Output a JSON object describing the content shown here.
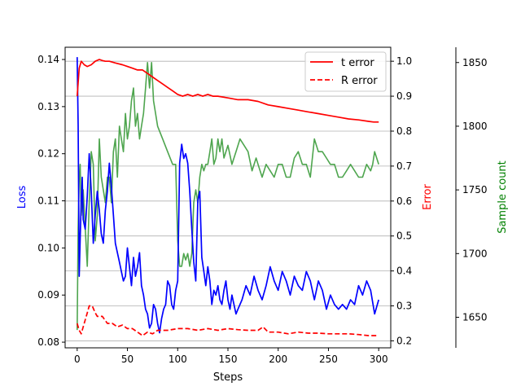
{
  "chart_data": {
    "type": "line",
    "xlabel": "Steps",
    "xlim": [
      -12,
      312
    ],
    "xticks": [
      0,
      50,
      100,
      150,
      200,
      250,
      300
    ],
    "grid": "horizontal on right (Error) axis",
    "legend_placement": "top-right",
    "axes": {
      "left": {
        "label": "Loss",
        "color": "#0000ff",
        "ylim": [
          0.0788,
          0.1426
        ],
        "ticks": [
          "0.08",
          "0.09",
          "0.10",
          "0.11",
          "0.12",
          "0.13",
          "0.14"
        ]
      },
      "right": {
        "label": "Error",
        "color": "#ff0000",
        "ylim": [
          0.18,
          1.04
        ],
        "ticks": [
          "0.2",
          "0.3",
          "0.4",
          "0.5",
          "0.6",
          "0.7",
          "0.8",
          "0.9",
          "1.0"
        ]
      },
      "far_right": {
        "label": "Sample count",
        "color": "#008000",
        "ylim": [
          1626,
          1862
        ],
        "ticks": [
          "1650",
          "1700",
          "1750",
          "1800",
          "1850"
        ]
      }
    },
    "series": [
      {
        "name": "t error",
        "axis": "right",
        "color": "#ff0000",
        "style": "solid",
        "x": [
          0,
          2,
          4,
          7,
          10,
          14,
          18,
          22,
          25,
          28,
          32,
          38,
          45,
          50,
          55,
          60,
          65,
          70,
          75,
          80,
          85,
          90,
          95,
          100,
          105,
          110,
          115,
          120,
          125,
          130,
          135,
          140,
          150,
          160,
          170,
          180,
          190,
          200,
          210,
          220,
          230,
          240,
          250,
          260,
          270,
          280,
          290,
          295,
          300
        ],
        "y": [
          0.9,
          0.98,
          1.0,
          0.99,
          0.985,
          0.99,
          1.0,
          1.005,
          1.002,
          1.0,
          1.0,
          0.995,
          0.99,
          0.985,
          0.98,
          0.975,
          0.975,
          0.965,
          0.955,
          0.945,
          0.935,
          0.925,
          0.915,
          0.905,
          0.9,
          0.905,
          0.9,
          0.905,
          0.9,
          0.905,
          0.9,
          0.9,
          0.895,
          0.89,
          0.89,
          0.885,
          0.875,
          0.87,
          0.865,
          0.86,
          0.855,
          0.85,
          0.845,
          0.84,
          0.835,
          0.832,
          0.828,
          0.826,
          0.826
        ]
      },
      {
        "name": "R error",
        "axis": "right",
        "color": "#ff0000",
        "style": "dashed",
        "x": [
          0,
          2,
          4,
          6,
          8,
          10,
          12,
          15,
          18,
          20,
          25,
          30,
          35,
          40,
          45,
          50,
          55,
          60,
          65,
          70,
          75,
          80,
          90,
          100,
          110,
          120,
          130,
          140,
          150,
          160,
          170,
          180,
          185,
          190,
          200,
          210,
          220,
          230,
          240,
          250,
          260,
          270,
          280,
          290,
          300
        ],
        "y": [
          0.25,
          0.23,
          0.22,
          0.24,
          0.26,
          0.28,
          0.3,
          0.3,
          0.28,
          0.27,
          0.27,
          0.25,
          0.25,
          0.24,
          0.245,
          0.235,
          0.235,
          0.225,
          0.215,
          0.225,
          0.22,
          0.23,
          0.23,
          0.235,
          0.235,
          0.23,
          0.235,
          0.23,
          0.235,
          0.232,
          0.23,
          0.23,
          0.24,
          0.225,
          0.225,
          0.22,
          0.225,
          0.222,
          0.222,
          0.22,
          0.22,
          0.22,
          0.218,
          0.215,
          0.215
        ]
      },
      {
        "name": "",
        "axis": "far_right",
        "color": "#4ea54e",
        "style": "solid",
        "x": [
          0,
          1,
          2,
          3,
          4,
          6,
          8,
          10,
          12,
          14,
          16,
          18,
          20,
          22,
          24,
          26,
          28,
          30,
          32,
          34,
          36,
          38,
          40,
          42,
          44,
          46,
          48,
          50,
          52,
          54,
          56,
          58,
          60,
          62,
          64,
          66,
          68,
          70,
          72,
          74,
          76,
          78,
          80,
          85,
          90,
          95,
          98,
          100,
          102,
          104,
          106,
          108,
          110,
          112,
          114,
          116,
          118,
          120,
          122,
          124,
          126,
          128,
          130,
          132,
          134,
          136,
          138,
          140,
          142,
          144,
          146,
          150,
          154,
          158,
          162,
          166,
          170,
          174,
          178,
          180,
          184,
          188,
          192,
          196,
          200,
          204,
          208,
          212,
          216,
          220,
          224,
          228,
          232,
          236,
          240,
          244,
          248,
          252,
          256,
          260,
          264,
          268,
          272,
          276,
          280,
          284,
          288,
          292,
          294,
          296,
          300
        ],
        "y": [
          1640,
          1720,
          1760,
          1770,
          1730,
          1750,
          1720,
          1690,
          1740,
          1780,
          1770,
          1710,
          1730,
          1790,
          1760,
          1750,
          1740,
          1760,
          1760,
          1740,
          1780,
          1790,
          1760,
          1800,
          1790,
          1780,
          1810,
          1790,
          1800,
          1820,
          1830,
          1800,
          1810,
          1790,
          1800,
          1810,
          1830,
          1850,
          1830,
          1850,
          1820,
          1810,
          1800,
          1790,
          1780,
          1770,
          1770,
          1710,
          1690,
          1690,
          1700,
          1695,
          1700,
          1690,
          1700,
          1740,
          1750,
          1740,
          1760,
          1770,
          1765,
          1770,
          1770,
          1780,
          1790,
          1770,
          1775,
          1790,
          1780,
          1790,
          1775,
          1785,
          1770,
          1780,
          1790,
          1785,
          1780,
          1765,
          1775,
          1770,
          1760,
          1770,
          1765,
          1760,
          1770,
          1770,
          1760,
          1760,
          1775,
          1780,
          1770,
          1770,
          1760,
          1790,
          1780,
          1780,
          1775,
          1770,
          1770,
          1760,
          1760,
          1765,
          1770,
          1765,
          1760,
          1760,
          1770,
          1765,
          1770,
          1780,
          1770
        ]
      },
      {
        "name": "",
        "axis": "left",
        "color": "#0000ff",
        "style": "solid",
        "x": [
          0,
          1,
          2,
          3,
          4,
          5,
          6,
          8,
          10,
          12,
          14,
          16,
          18,
          20,
          22,
          24,
          26,
          28,
          30,
          32,
          34,
          36,
          38,
          40,
          42,
          44,
          46,
          48,
          50,
          52,
          54,
          56,
          58,
          60,
          62,
          64,
          66,
          68,
          70,
          72,
          74,
          76,
          78,
          80,
          82,
          84,
          86,
          88,
          90,
          92,
          94,
          96,
          98,
          100,
          102,
          104,
          106,
          108,
          110,
          112,
          114,
          116,
          118,
          120,
          122,
          124,
          126,
          128,
          130,
          132,
          134,
          136,
          138,
          140,
          142,
          144,
          146,
          148,
          150,
          152,
          154,
          156,
          158,
          160,
          164,
          168,
          172,
          176,
          180,
          184,
          188,
          192,
          196,
          200,
          204,
          208,
          212,
          216,
          220,
          224,
          228,
          232,
          236,
          240,
          244,
          248,
          252,
          256,
          260,
          264,
          268,
          272,
          276,
          280,
          284,
          288,
          292,
          296,
          300
        ],
        "y": [
          0.1405,
          0.126,
          0.094,
          0.102,
          0.11,
          0.115,
          0.106,
          0.104,
          0.111,
          0.12,
          0.112,
          0.101,
          0.107,
          0.112,
          0.108,
          0.103,
          0.101,
          0.108,
          0.112,
          0.118,
          0.113,
          0.107,
          0.101,
          0.099,
          0.097,
          0.095,
          0.093,
          0.094,
          0.1,
          0.096,
          0.092,
          0.098,
          0.094,
          0.096,
          0.099,
          0.092,
          0.09,
          0.087,
          0.086,
          0.083,
          0.084,
          0.088,
          0.087,
          0.084,
          0.082,
          0.085,
          0.087,
          0.088,
          0.093,
          0.092,
          0.088,
          0.087,
          0.091,
          0.093,
          0.118,
          0.122,
          0.119,
          0.12,
          0.118,
          0.112,
          0.104,
          0.097,
          0.093,
          0.11,
          0.112,
          0.098,
          0.095,
          0.092,
          0.096,
          0.093,
          0.088,
          0.091,
          0.09,
          0.092,
          0.089,
          0.088,
          0.091,
          0.093,
          0.089,
          0.087,
          0.09,
          0.088,
          0.086,
          0.087,
          0.089,
          0.092,
          0.09,
          0.094,
          0.091,
          0.089,
          0.092,
          0.096,
          0.093,
          0.091,
          0.095,
          0.093,
          0.09,
          0.094,
          0.092,
          0.091,
          0.095,
          0.093,
          0.089,
          0.093,
          0.091,
          0.087,
          0.09,
          0.088,
          0.087,
          0.088,
          0.087,
          0.089,
          0.088,
          0.092,
          0.09,
          0.093,
          0.091,
          0.086,
          0.089
        ]
      }
    ]
  }
}
